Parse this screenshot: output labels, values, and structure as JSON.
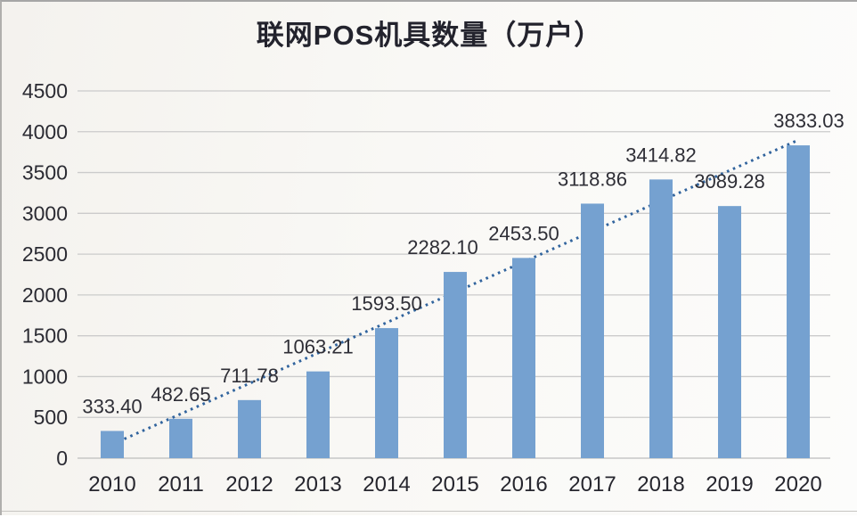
{
  "chart_data": {
    "type": "bar",
    "title": "联网POS机具数量（万户）",
    "categories": [
      "2010",
      "2011",
      "2012",
      "2013",
      "2014",
      "2015",
      "2016",
      "2017",
      "2018",
      "2019",
      "2020"
    ],
    "values": [
      333.4,
      482.65,
      711.78,
      1063.21,
      1593.5,
      2282.1,
      2453.5,
      3118.86,
      3414.82,
      3089.28,
      3833.03
    ],
    "data_labels": [
      "333.40",
      "482.65",
      "711.78",
      "1063.21",
      "1593.50",
      "2282.10",
      "2453.50",
      "3118.86",
      "3414.82",
      "3089.28",
      "3833.03"
    ],
    "xlabel": "",
    "ylabel": "",
    "ylim": [
      0,
      4500
    ],
    "ytick_step": 500,
    "yticks": [
      "0",
      "500",
      "1000",
      "1500",
      "2000",
      "2500",
      "3000",
      "3500",
      "4000",
      "4500"
    ],
    "grid": true,
    "legend": "none",
    "trendline": {
      "type": "linear",
      "style": "dotted",
      "start_value": 170,
      "end_value": 3898
    },
    "colors": {
      "bar": "#75A1D0",
      "trend": "#30639D",
      "grid": "#CBCBCB",
      "axis": "#BDBDBD",
      "tick_text": "#2B2B33",
      "label_text": "#2E2E36",
      "title_text": "#23232D"
    }
  }
}
